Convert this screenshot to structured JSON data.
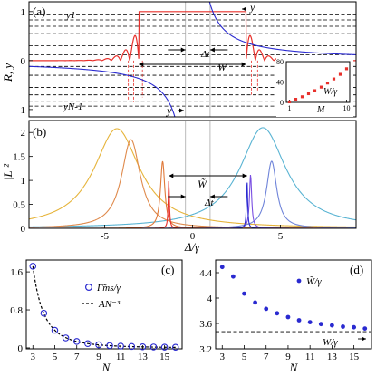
{
  "chart_data": [
    {
      "panel": "(a)",
      "type": "line",
      "ylabel": "R, y",
      "xlim": [
        -9.3,
        9.3
      ],
      "ylim": [
        -1.15,
        1.2
      ],
      "yticks": [
        -1,
        0,
        1
      ],
      "ytick_labels": [
        "-1",
        "0",
        "1"
      ],
      "annotations": {
        "y1": "y1",
        "yN1": "yN-1",
        "y_top": "y",
        "y_bottom": "y",
        "delta": "Δt",
        "width": "W"
      },
      "levels_y": [
        0.93,
        0.83,
        0.7,
        0.55,
        0.3,
        0.12,
        -0.05,
        -0.12,
        -0.3,
        -0.55,
        -0.7,
        -0.83,
        -0.93
      ],
      "guide_x": [
        -0.4,
        1.0
      ],
      "plateau": {
        "x_start": -3.05,
        "x_end": 3.05,
        "value": 1.0
      },
      "series": [
        {
          "name": "R",
          "color": "#e8302b"
        },
        {
          "name": "y",
          "color": "#2a2ad0"
        }
      ],
      "inset": {
        "type": "scatter",
        "xlabel": "M",
        "xticks": [
          1,
          10
        ],
        "yticks": [
          0,
          40,
          80
        ],
        "ylim": [
          0,
          80
        ],
        "legend": "W/γ",
        "x": [
          1,
          2,
          3,
          4,
          5,
          6,
          7,
          8,
          9,
          10
        ],
        "y": [
          1,
          6,
          11,
          17,
          23,
          30,
          38,
          46,
          55,
          66
        ],
        "color": "#e8302b"
      }
    },
    {
      "panel": "(b)",
      "type": "line",
      "ylabel": "|L|²",
      "xlabel": "Δ/γ",
      "xlim": [
        -9.3,
        9.3
      ],
      "ylim": [
        0,
        2.25
      ],
      "xticks": [
        -5,
        0,
        5
      ],
      "xtick_labels": [
        "-5",
        "0",
        "5"
      ],
      "yticks": [
        0,
        0.5,
        1,
        1.5,
        2
      ],
      "ytick_labels": [
        "0",
        "0.5",
        "1",
        "1.5",
        "2"
      ],
      "annotations": {
        "width": "W̃",
        "delta": "Δt"
      },
      "series": [
        {
          "center": -4.3,
          "width": 3.2,
          "height": 2.08,
          "color": "#e6b43b"
        },
        {
          "center": 4.0,
          "width": 3.2,
          "height": 2.1,
          "color": "#5ab4d3"
        },
        {
          "center": -3.5,
          "width": 1.3,
          "height": 1.85,
          "color": "#df8a4c"
        },
        {
          "center": 4.5,
          "width": 0.7,
          "height": 1.4,
          "color": "#6f84d9"
        },
        {
          "center": -1.7,
          "width": 0.3,
          "height": 1.4,
          "color": "#e07a3a"
        },
        {
          "center": 3.3,
          "width": 0.15,
          "height": 1.12,
          "color": "#7a4fe2"
        },
        {
          "center": -1.35,
          "width": 0.08,
          "height": 1.0,
          "color": "#e8302b"
        },
        {
          "center": 3.1,
          "width": 0.08,
          "height": 1.0,
          "color": "#2a2ad0"
        }
      ]
    },
    {
      "panel": "(c)",
      "type": "scatter",
      "xlabel": "N",
      "xlim": [
        2.4,
        16.6
      ],
      "ylim": [
        -0.02,
        1.85
      ],
      "xticks": [
        3,
        5,
        7,
        9,
        11,
        13,
        15
      ],
      "yticks": [
        0,
        0.8,
        1.6
      ],
      "ytick_labels": [
        "0",
        "0.8",
        "1.6"
      ],
      "series": [
        {
          "name": "Γ̃ms/γ",
          "marker": "open-circle",
          "color": "#2a2ad0",
          "x": [
            3,
            4,
            5,
            6,
            7,
            8,
            9,
            10,
            11,
            12,
            13,
            14,
            15,
            16
          ],
          "y": [
            1.72,
            0.73,
            0.37,
            0.21,
            0.135,
            0.09,
            0.065,
            0.048,
            0.037,
            0.029,
            0.023,
            0.019,
            0.016,
            0.013
          ]
        },
        {
          "name": "AN⁻³",
          "style": "dashed",
          "color": "#000000",
          "A": 46.4
        }
      ]
    },
    {
      "panel": "(d)",
      "type": "scatter",
      "xlabel": "N",
      "xlim": [
        2.4,
        16.6
      ],
      "ylim": [
        3.2,
        4.6
      ],
      "xticks": [
        3,
        5,
        7,
        9,
        11,
        13,
        15
      ],
      "yticks": [
        3.2,
        3.6,
        4.0,
        4.4
      ],
      "ytick_labels": [
        "3.2",
        "3.6",
        "4",
        "4.4"
      ],
      "annotations": {
        "asymptote": "W/γ"
      },
      "asymptote_y": 3.47,
      "series": [
        {
          "name": "W̃/γ",
          "marker": "filled-circle",
          "color": "#2a2ad0",
          "x": [
            3,
            4,
            5,
            6,
            7,
            8,
            9,
            10,
            11,
            12,
            13,
            14,
            15,
            16
          ],
          "y": [
            4.49,
            4.34,
            4.07,
            3.93,
            3.83,
            3.76,
            3.7,
            3.65,
            3.62,
            3.59,
            3.57,
            3.55,
            3.54,
            3.52
          ]
        }
      ]
    }
  ]
}
